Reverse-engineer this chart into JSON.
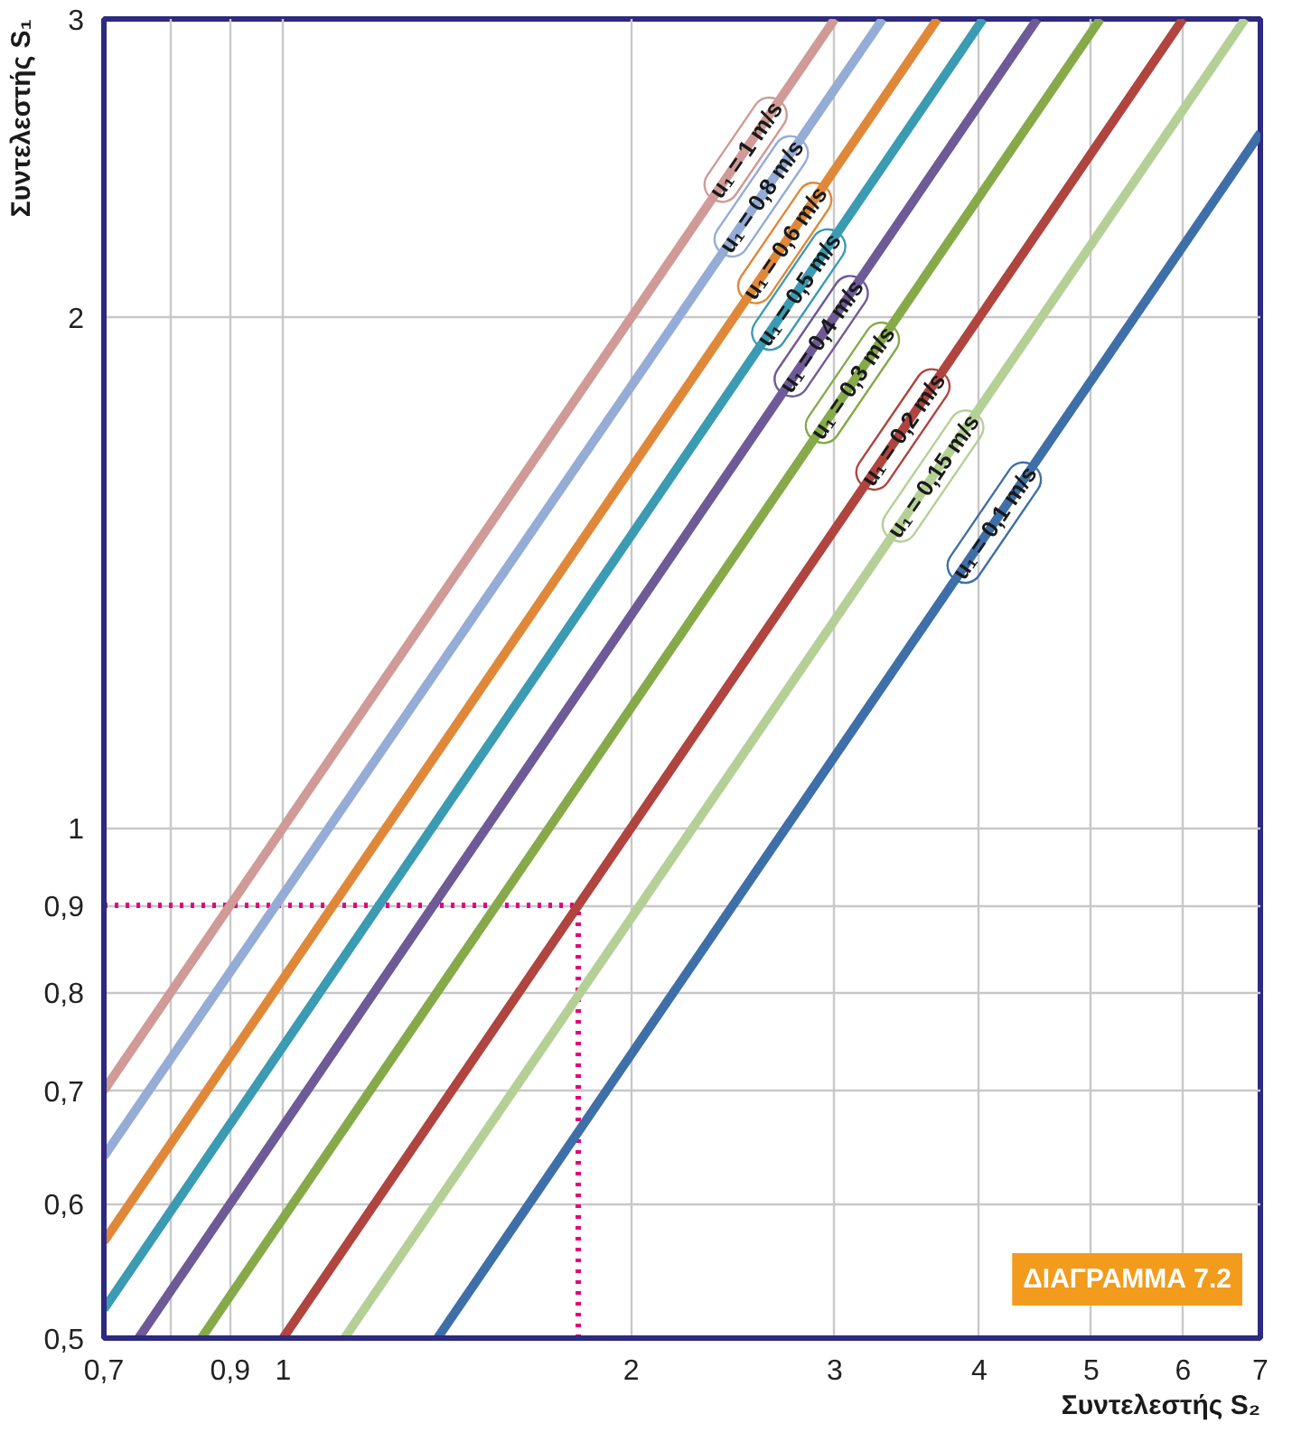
{
  "chart_data": {
    "type": "line",
    "xlabel": "Συντελεστής S₂",
    "ylabel": "Συντελεστής S₁",
    "log": "xy",
    "grid": true,
    "marker": "none",
    "line_style": "solid",
    "xlim": [
      0.7,
      7
    ],
    "ylim": [
      0.5,
      3
    ],
    "xticks": [
      {
        "value": 0.7,
        "label": "0,7"
      },
      {
        "value": 0.8,
        "label": null
      },
      {
        "value": 0.9,
        "label": "0,9"
      },
      1,
      2,
      3,
      4,
      5,
      6,
      7
    ],
    "yticks": [
      {
        "value": 0.5,
        "label": "0,5"
      },
      {
        "value": 0.6,
        "label": "0,6"
      },
      {
        "value": 0.7,
        "label": "0,7"
      },
      {
        "value": 0.8,
        "label": "0,8"
      },
      {
        "value": 0.9,
        "label": "0,9"
      },
      1,
      2,
      3
    ],
    "series": [
      {
        "name": "u₁ = 1 m/s",
        "color": "#d09a96",
        "x": [
          0.7,
          3.0
        ],
        "values": [
          0.7,
          3.0
        ]
      },
      {
        "name": "u₁ = 0,8 m/s",
        "color": "#94acd6",
        "x": [
          0.7,
          3.3
        ],
        "values": [
          0.64,
          3.0
        ]
      },
      {
        "name": "u₁ = 0,6 m/s",
        "color": "#e0883a",
        "x": [
          0.7,
          3.68
        ],
        "values": [
          0.57,
          3.0
        ]
      },
      {
        "name": "u₁ = 0,5 m/s",
        "color": "#3a9bb3",
        "x": [
          0.7,
          4.03
        ],
        "values": [
          0.52,
          3.0
        ]
      },
      {
        "name": "u₁ = 0,4 m/s",
        "color": "#6e5a97",
        "x": [
          0.75,
          4.49
        ],
        "values": [
          0.5,
          3.0
        ]
      },
      {
        "name": "u₁ = 0,3 m/s",
        "color": "#86aa4a",
        "x": [
          0.85,
          5.09
        ],
        "values": [
          0.5,
          3.0
        ]
      },
      {
        "name": "u₁ = 0,2 m/s",
        "color": "#b0443f",
        "x": [
          1.0,
          6.0
        ],
        "values": [
          0.5,
          3.0
        ]
      },
      {
        "name": "u₁ = 0,15 m/s",
        "color": "#b5d096",
        "x": [
          1.13,
          6.79
        ],
        "values": [
          0.5,
          3.0
        ]
      },
      {
        "name": "u₁ = 0,1 m/s",
        "color": "#3f6fa8",
        "x": [
          1.36,
          7.0
        ],
        "values": [
          0.5,
          2.57
        ]
      }
    ],
    "ref_lines": [
      {
        "axis": "y",
        "value": 0.9,
        "label": null,
        "color": "#e6007e",
        "line_style": "dotted"
      },
      {
        "axis": "x",
        "value": 1.8,
        "label": null,
        "color": "#e6007e",
        "line_style": "dotted"
      }
    ],
    "annotations": [
      "ΔΙΑΓΡΑΜΜΑ 7.2"
    ]
  }
}
